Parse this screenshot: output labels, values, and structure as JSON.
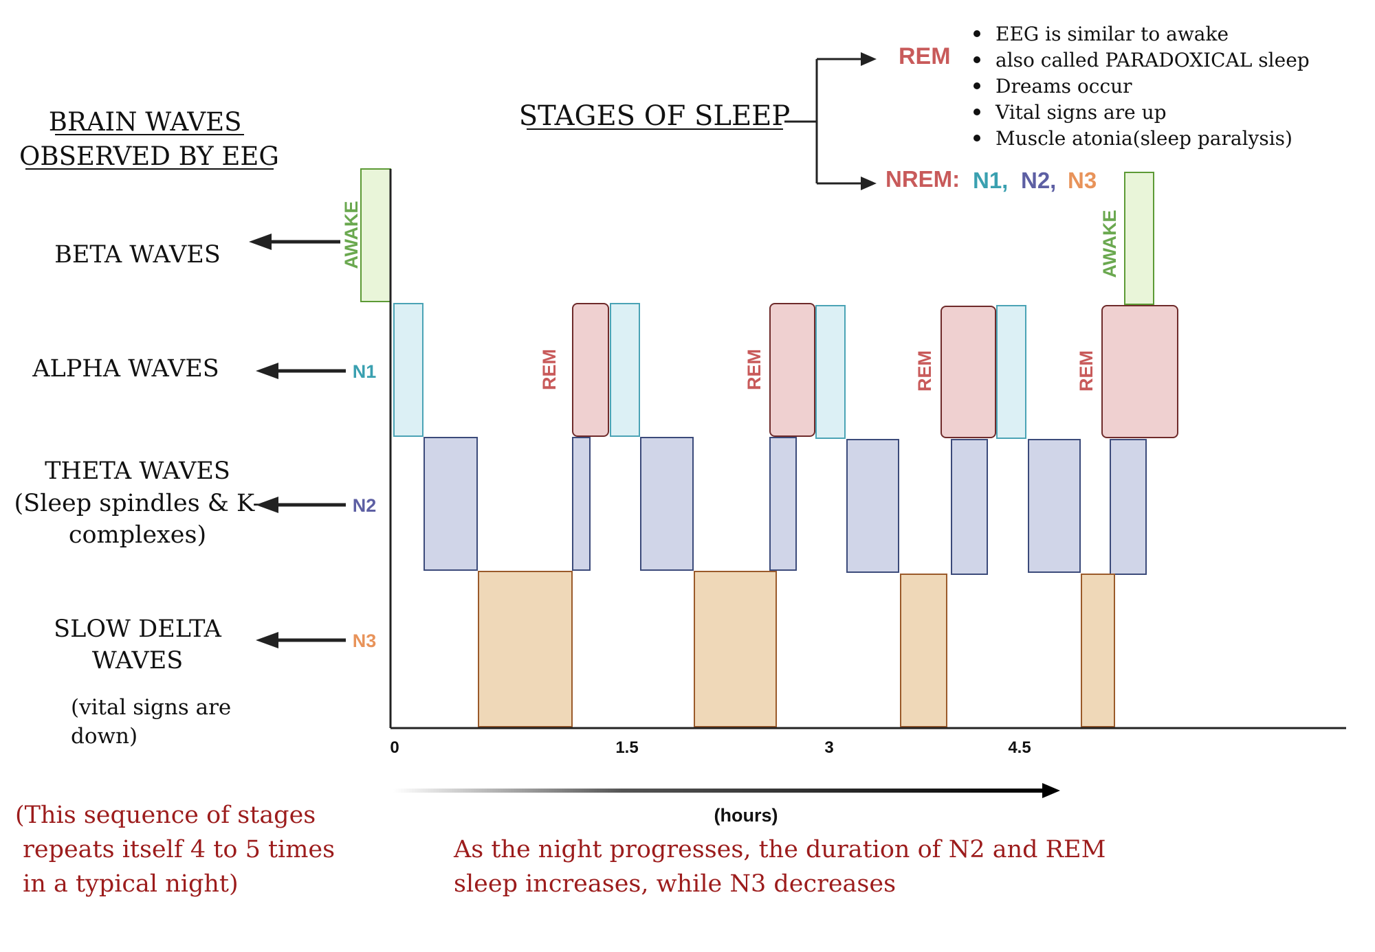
{
  "left_panel": {
    "title_line1": "BRAIN WAVES ",
    "title_line2": "OBSERVED BY EEG",
    "waves": [
      {
        "id": "beta",
        "lines": [
          "BETA WAVES"
        ],
        "stage": "AWAKE"
      },
      {
        "id": "alpha",
        "lines": [
          "ALPHA WAVES"
        ],
        "stage": "N1"
      },
      {
        "id": "theta",
        "lines": [
          "THETA WAVES",
          "(Sleep spindles & K-",
          "complexes)"
        ],
        "stage": "N2"
      },
      {
        "id": "delta",
        "lines": [
          "SLOW DELTA",
          "WAVES"
        ],
        "stage": "N3"
      }
    ],
    "delta_note": [
      "(vital signs are",
      "down)"
    ]
  },
  "stages_panel": {
    "title": "STAGES OF SLEEP",
    "rem_label": "REM",
    "rem_bullets": [
      "EEG is similar to awake",
      "also called PARADOXICAL sleep",
      "Dreams occur",
      "Vital signs are up",
      "Muscle atonia(sleep paralysis)"
    ],
    "nrem_label": "NREM:",
    "nrem_stages": [
      "N1,",
      "N2,",
      "N3"
    ]
  },
  "stage_labels": {
    "awake": "AWAKE",
    "n1": "N1",
    "n2": "N2",
    "n3": "N3",
    "rem": "REM"
  },
  "axis": {
    "ticks": [
      "0",
      "1.5",
      "3",
      "4.5"
    ],
    "unit_label": "(hours)"
  },
  "notes": {
    "repeat": [
      "(This sequence of stages",
      " repeats itself 4 to 5 times",
      " in a typical night)"
    ],
    "progress": [
      "As the night progresses, the duration of N2 and REM",
      "sleep increases, while N3 decreases"
    ]
  },
  "colors": {
    "awake_fill": "#e9f5d9",
    "awake_stroke": "#5c9a35",
    "awake_text": "#6aa84f",
    "n1_fill": "#dcf0f5",
    "n1_stroke": "#4aa3b5",
    "n1_text": "#3aa0b0",
    "n2_fill": "#d0d5e8",
    "n2_stroke": "#3b4a7a",
    "n2_text": "#5d5fa3",
    "n3_fill": "#efd8b8",
    "n3_stroke": "#9a5a2a",
    "n3_text": "#e8935a",
    "rem_fill": "#efd0d0",
    "rem_stroke": "#6e2a2a",
    "rem_text": "#c85a5a",
    "note_text": "#9c1c1c"
  }
}
